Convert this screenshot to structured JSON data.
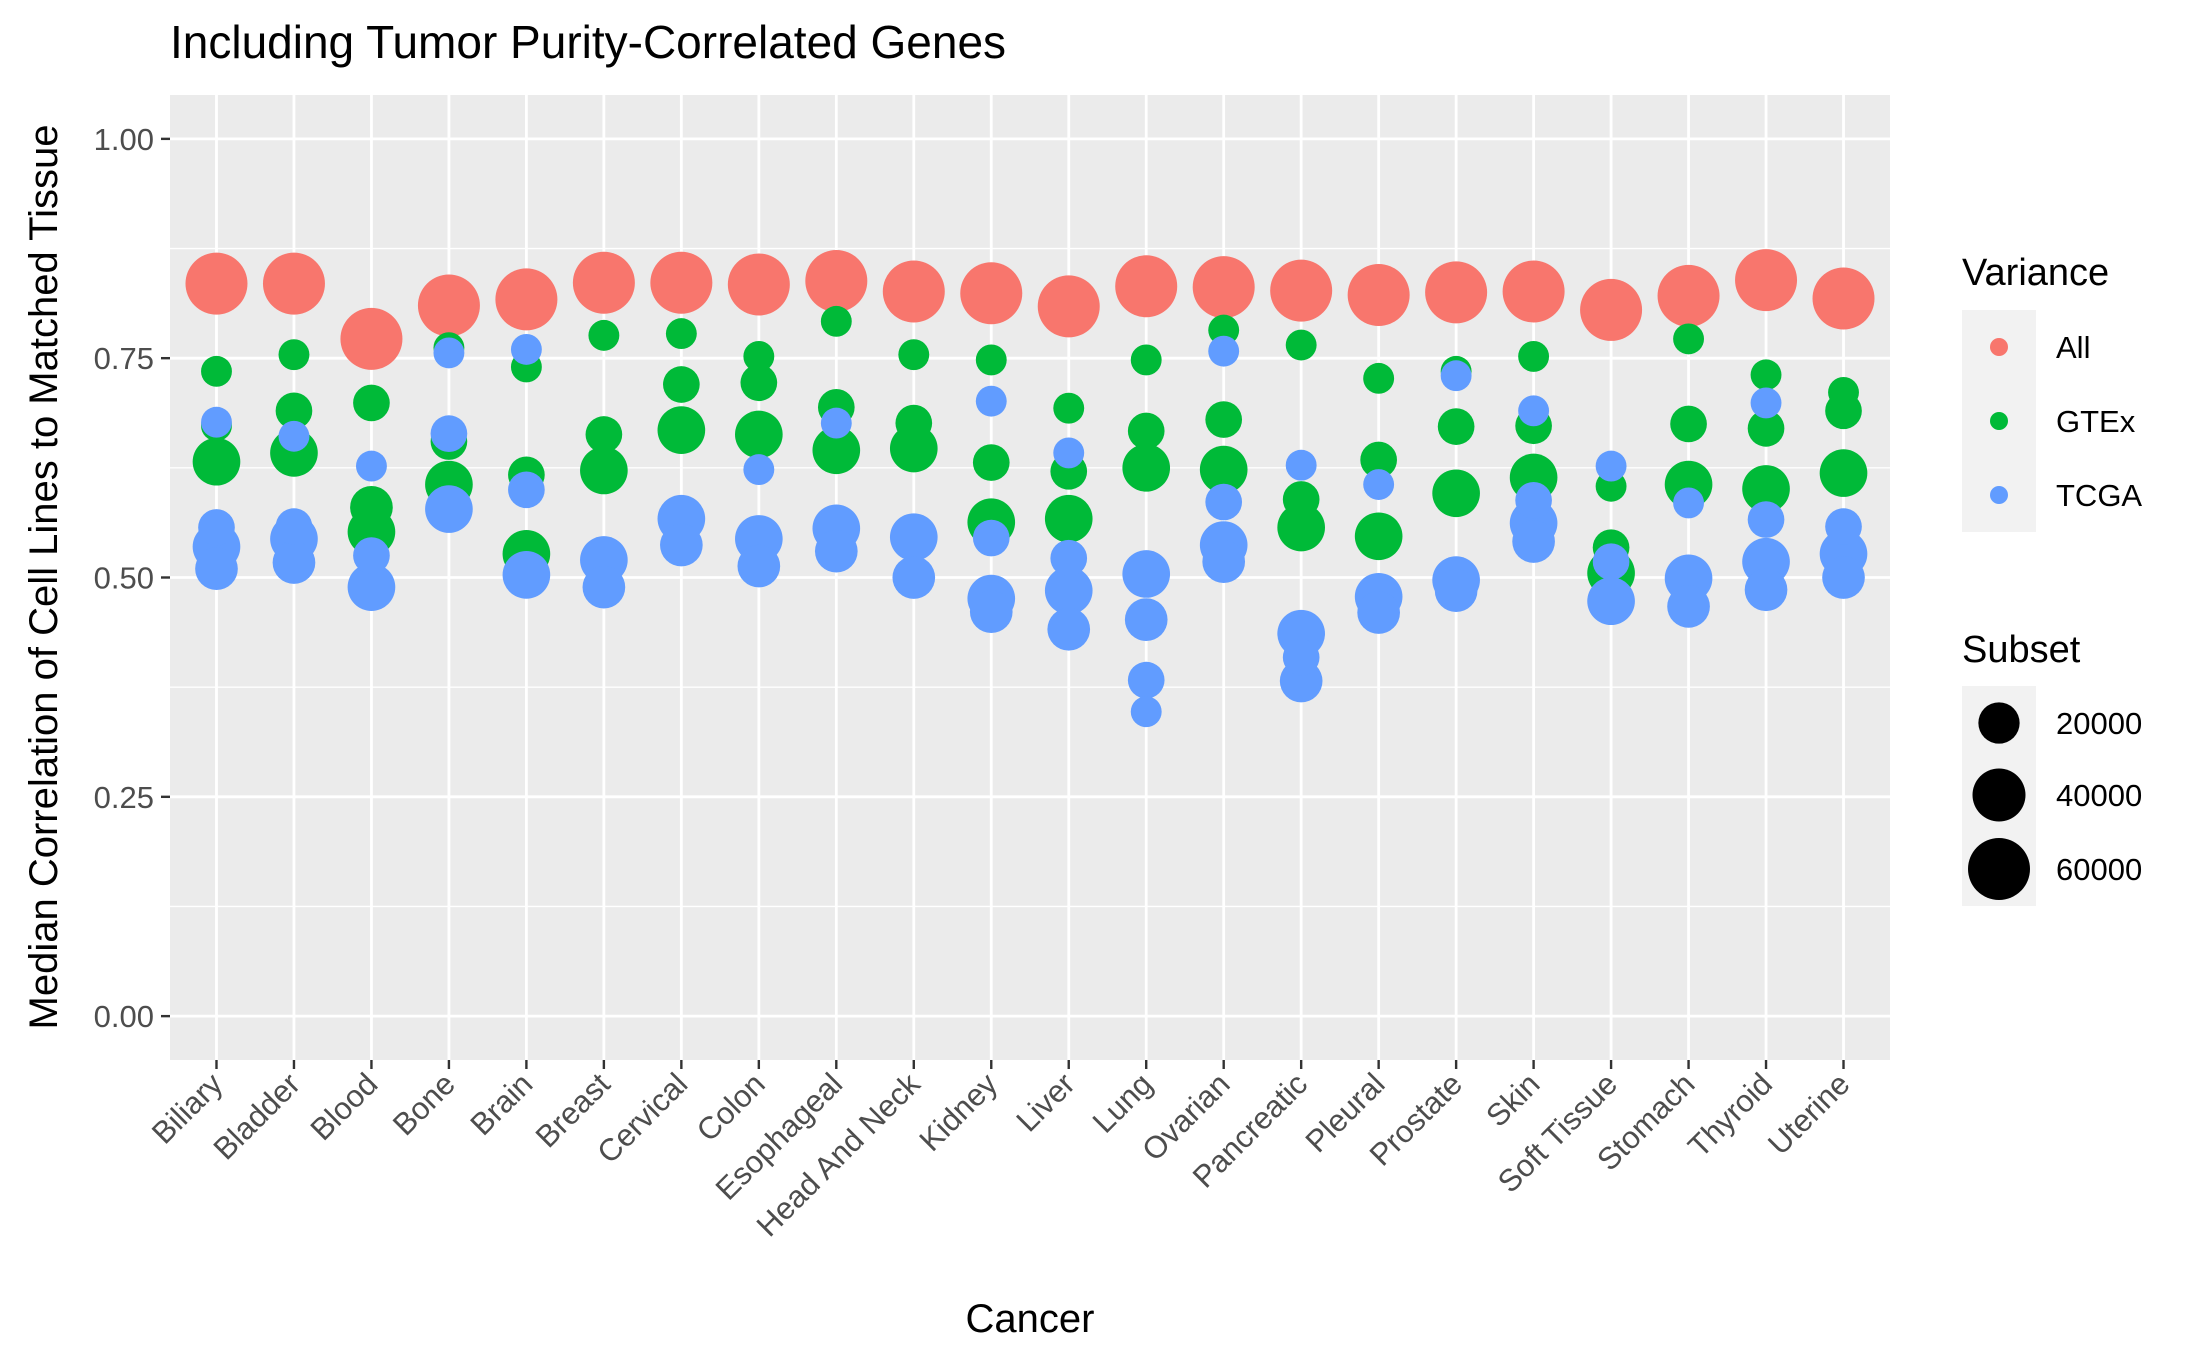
{
  "chart_data": {
    "type": "scatter",
    "title": "Including Tumor Purity-Correlated Genes",
    "xlabel": "Cancer",
    "ylabel": "Median Correlation of Cell Lines to Matched Tissue",
    "ylim": [
      -0.05,
      1.05
    ],
    "yticks": [
      0.0,
      0.25,
      0.5,
      0.75,
      1.0
    ],
    "ytick_labels": [
      "0.00",
      "0.25",
      "0.50",
      "0.75",
      "1.00"
    ],
    "grid": true,
    "legend_position": "right",
    "categories": [
      "Biliary",
      "Bladder",
      "Blood",
      "Bone",
      "Brain",
      "Breast",
      "Cervical",
      "Colon",
      "Esophageal",
      "Head And Neck",
      "Kidney",
      "Liver",
      "Lung",
      "Ovarian",
      "Pancreatic",
      "Pleural",
      "Prostate",
      "Skin",
      "Soft Tissue",
      "Stomach",
      "Thyroid",
      "Uterine"
    ],
    "color_legend": {
      "title": "Variance",
      "entries": [
        {
          "name": "All",
          "color": "#F8766D"
        },
        {
          "name": "GTEx",
          "color": "#00BA38"
        },
        {
          "name": "TCGA",
          "color": "#619CFF"
        }
      ]
    },
    "size_legend": {
      "title": "Subset",
      "entries": [
        {
          "label": "20000",
          "value": 20000
        },
        {
          "label": "40000",
          "value": 40000
        },
        {
          "label": "60000",
          "value": 60000
        }
      ]
    },
    "series": [
      {
        "name": "All",
        "color": "#F8766D",
        "points": [
          {
            "x": "Biliary",
            "y": 0.835,
            "size": 60000
          },
          {
            "x": "Bladder",
            "y": 0.835,
            "size": 60000
          },
          {
            "x": "Blood",
            "y": 0.772,
            "size": 60000
          },
          {
            "x": "Bone",
            "y": 0.81,
            "size": 60000
          },
          {
            "x": "Brain",
            "y": 0.817,
            "size": 60000
          },
          {
            "x": "Breast",
            "y": 0.836,
            "size": 60000
          },
          {
            "x": "Cervical",
            "y": 0.836,
            "size": 60000
          },
          {
            "x": "Colon",
            "y": 0.834,
            "size": 60000
          },
          {
            "x": "Esophageal",
            "y": 0.838,
            "size": 60000
          },
          {
            "x": "Head And Neck",
            "y": 0.826,
            "size": 60000
          },
          {
            "x": "Kidney",
            "y": 0.824,
            "size": 60000
          },
          {
            "x": "Liver",
            "y": 0.809,
            "size": 60000
          },
          {
            "x": "Lung",
            "y": 0.832,
            "size": 60000
          },
          {
            "x": "Ovarian",
            "y": 0.831,
            "size": 60000
          },
          {
            "x": "Pancreatic",
            "y": 0.827,
            "size": 60000
          },
          {
            "x": "Pleural",
            "y": 0.822,
            "size": 60000
          },
          {
            "x": "Prostate",
            "y": 0.825,
            "size": 60000
          },
          {
            "x": "Skin",
            "y": 0.826,
            "size": 60000
          },
          {
            "x": "Soft Tissue",
            "y": 0.805,
            "size": 60000
          },
          {
            "x": "Stomach",
            "y": 0.821,
            "size": 60000
          },
          {
            "x": "Thyroid",
            "y": 0.839,
            "size": 60000
          },
          {
            "x": "Uterine",
            "y": 0.818,
            "size": 60000
          }
        ]
      },
      {
        "name": "GTEx",
        "color": "#00BA38",
        "points": [
          {
            "x": "Biliary",
            "y": 0.735,
            "size": 8000
          },
          {
            "x": "Biliary",
            "y": 0.673,
            "size": 8000
          },
          {
            "x": "Biliary",
            "y": 0.632,
            "size": 30000
          },
          {
            "x": "Bladder",
            "y": 0.754,
            "size": 8000
          },
          {
            "x": "Bladder",
            "y": 0.69,
            "size": 14000
          },
          {
            "x": "Bladder",
            "y": 0.642,
            "size": 30000
          },
          {
            "x": "Blood",
            "y": 0.699,
            "size": 14000
          },
          {
            "x": "Blood",
            "y": 0.58,
            "size": 22000
          },
          {
            "x": "Blood",
            "y": 0.552,
            "size": 30000
          },
          {
            "x": "Bone",
            "y": 0.762,
            "size": 8000
          },
          {
            "x": "Bone",
            "y": 0.655,
            "size": 14000
          },
          {
            "x": "Bone",
            "y": 0.606,
            "size": 30000
          },
          {
            "x": "Brain",
            "y": 0.74,
            "size": 8000
          },
          {
            "x": "Brain",
            "y": 0.617,
            "size": 14000
          },
          {
            "x": "Brain",
            "y": 0.527,
            "size": 30000
          },
          {
            "x": "Breast",
            "y": 0.776,
            "size": 8000
          },
          {
            "x": "Breast",
            "y": 0.663,
            "size": 14000
          },
          {
            "x": "Breast",
            "y": 0.622,
            "size": 30000
          },
          {
            "x": "Cervical",
            "y": 0.778,
            "size": 8000
          },
          {
            "x": "Cervical",
            "y": 0.72,
            "size": 14000
          },
          {
            "x": "Cervical",
            "y": 0.668,
            "size": 30000
          },
          {
            "x": "Colon",
            "y": 0.752,
            "size": 8000
          },
          {
            "x": "Colon",
            "y": 0.722,
            "size": 14000
          },
          {
            "x": "Colon",
            "y": 0.663,
            "size": 30000
          },
          {
            "x": "Esophageal",
            "y": 0.792,
            "size": 8000
          },
          {
            "x": "Esophageal",
            "y": 0.694,
            "size": 14000
          },
          {
            "x": "Esophageal",
            "y": 0.645,
            "size": 30000
          },
          {
            "x": "Head And Neck",
            "y": 0.754,
            "size": 8000
          },
          {
            "x": "Head And Neck",
            "y": 0.676,
            "size": 14000
          },
          {
            "x": "Head And Neck",
            "y": 0.647,
            "size": 30000
          },
          {
            "x": "Kidney",
            "y": 0.748,
            "size": 8000
          },
          {
            "x": "Kidney",
            "y": 0.631,
            "size": 14000
          },
          {
            "x": "Kidney",
            "y": 0.563,
            "size": 30000
          },
          {
            "x": "Liver",
            "y": 0.693,
            "size": 8000
          },
          {
            "x": "Liver",
            "y": 0.621,
            "size": 14000
          },
          {
            "x": "Liver",
            "y": 0.567,
            "size": 30000
          },
          {
            "x": "Lung",
            "y": 0.748,
            "size": 8000
          },
          {
            "x": "Lung",
            "y": 0.667,
            "size": 14000
          },
          {
            "x": "Lung",
            "y": 0.625,
            "size": 30000
          },
          {
            "x": "Ovarian",
            "y": 0.782,
            "size": 8000
          },
          {
            "x": "Ovarian",
            "y": 0.68,
            "size": 14000
          },
          {
            "x": "Ovarian",
            "y": 0.623,
            "size": 30000
          },
          {
            "x": "Pancreatic",
            "y": 0.765,
            "size": 8000
          },
          {
            "x": "Pancreatic",
            "y": 0.589,
            "size": 14000
          },
          {
            "x": "Pancreatic",
            "y": 0.557,
            "size": 30000
          },
          {
            "x": "Pleural",
            "y": 0.727,
            "size": 8000
          },
          {
            "x": "Pleural",
            "y": 0.634,
            "size": 14000
          },
          {
            "x": "Pleural",
            "y": 0.547,
            "size": 30000
          },
          {
            "x": "Prostate",
            "y": 0.735,
            "size": 8000
          },
          {
            "x": "Prostate",
            "y": 0.672,
            "size": 14000
          },
          {
            "x": "Prostate",
            "y": 0.596,
            "size": 30000
          },
          {
            "x": "Skin",
            "y": 0.752,
            "size": 8000
          },
          {
            "x": "Skin",
            "y": 0.673,
            "size": 14000
          },
          {
            "x": "Skin",
            "y": 0.614,
            "size": 30000
          },
          {
            "x": "Soft Tissue",
            "y": 0.604,
            "size": 8000
          },
          {
            "x": "Soft Tissue",
            "y": 0.534,
            "size": 14000
          },
          {
            "x": "Soft Tissue",
            "y": 0.505,
            "size": 30000
          },
          {
            "x": "Stomach",
            "y": 0.772,
            "size": 8000
          },
          {
            "x": "Stomach",
            "y": 0.675,
            "size": 14000
          },
          {
            "x": "Stomach",
            "y": 0.606,
            "size": 30000
          },
          {
            "x": "Thyroid",
            "y": 0.731,
            "size": 8000
          },
          {
            "x": "Thyroid",
            "y": 0.67,
            "size": 14000
          },
          {
            "x": "Thyroid",
            "y": 0.601,
            "size": 30000
          },
          {
            "x": "Uterine",
            "y": 0.711,
            "size": 8000
          },
          {
            "x": "Uterine",
            "y": 0.69,
            "size": 14000
          },
          {
            "x": "Uterine",
            "y": 0.619,
            "size": 30000
          }
        ]
      },
      {
        "name": "TCGA",
        "color": "#619CFF",
        "points": [
          {
            "x": "Biliary",
            "y": 0.677,
            "size": 8000
          },
          {
            "x": "Biliary",
            "y": 0.557,
            "size": 14000
          },
          {
            "x": "Biliary",
            "y": 0.535,
            "size": 30000
          },
          {
            "x": "Biliary",
            "y": 0.51,
            "size": 22000
          },
          {
            "x": "Bladder",
            "y": 0.661,
            "size": 8000
          },
          {
            "x": "Bladder",
            "y": 0.558,
            "size": 14000
          },
          {
            "x": "Bladder",
            "y": 0.544,
            "size": 30000
          },
          {
            "x": "Bladder",
            "y": 0.517,
            "size": 22000
          },
          {
            "x": "Blood",
            "y": 0.627,
            "size": 8000
          },
          {
            "x": "Blood",
            "y": 0.525,
            "size": 14000
          },
          {
            "x": "Blood",
            "y": 0.489,
            "size": 30000
          },
          {
            "x": "Bone",
            "y": 0.756,
            "size": 8000
          },
          {
            "x": "Bone",
            "y": 0.664,
            "size": 14000
          },
          {
            "x": "Bone",
            "y": 0.578,
            "size": 30000
          },
          {
            "x": "Brain",
            "y": 0.76,
            "size": 8000
          },
          {
            "x": "Brain",
            "y": 0.6,
            "size": 14000
          },
          {
            "x": "Brain",
            "y": 0.503,
            "size": 30000
          },
          {
            "x": "Breast",
            "y": 0.52,
            "size": 30000
          },
          {
            "x": "Breast",
            "y": 0.489,
            "size": 22000
          },
          {
            "x": "Cervical",
            "y": 0.567,
            "size": 30000
          },
          {
            "x": "Cervical",
            "y": 0.537,
            "size": 22000
          },
          {
            "x": "Colon",
            "y": 0.623,
            "size": 8000
          },
          {
            "x": "Colon",
            "y": 0.544,
            "size": 30000
          },
          {
            "x": "Colon",
            "y": 0.513,
            "size": 22000
          },
          {
            "x": "Esophageal",
            "y": 0.676,
            "size": 8000
          },
          {
            "x": "Esophageal",
            "y": 0.556,
            "size": 30000
          },
          {
            "x": "Esophageal",
            "y": 0.53,
            "size": 22000
          },
          {
            "x": "Head And Neck",
            "y": 0.546,
            "size": 30000
          },
          {
            "x": "Head And Neck",
            "y": 0.5,
            "size": 22000
          },
          {
            "x": "Kidney",
            "y": 0.701,
            "size": 8000
          },
          {
            "x": "Kidney",
            "y": 0.545,
            "size": 14000
          },
          {
            "x": "Kidney",
            "y": 0.476,
            "size": 30000
          },
          {
            "x": "Kidney",
            "y": 0.461,
            "size": 22000
          },
          {
            "x": "Liver",
            "y": 0.642,
            "size": 8000
          },
          {
            "x": "Liver",
            "y": 0.522,
            "size": 14000
          },
          {
            "x": "Liver",
            "y": 0.485,
            "size": 30000
          },
          {
            "x": "Liver",
            "y": 0.441,
            "size": 22000
          },
          {
            "x": "Lung",
            "y": 0.504,
            "size": 30000
          },
          {
            "x": "Lung",
            "y": 0.452,
            "size": 22000
          },
          {
            "x": "Lung",
            "y": 0.383,
            "size": 14000
          },
          {
            "x": "Lung",
            "y": 0.347,
            "size": 8000
          },
          {
            "x": "Ovarian",
            "y": 0.758,
            "size": 8000
          },
          {
            "x": "Ovarian",
            "y": 0.586,
            "size": 14000
          },
          {
            "x": "Ovarian",
            "y": 0.537,
            "size": 30000
          },
          {
            "x": "Ovarian",
            "y": 0.518,
            "size": 22000
          },
          {
            "x": "Pancreatic",
            "y": 0.628,
            "size": 8000
          },
          {
            "x": "Pancreatic",
            "y": 0.436,
            "size": 30000
          },
          {
            "x": "Pancreatic",
            "y": 0.409,
            "size": 14000
          },
          {
            "x": "Pancreatic",
            "y": 0.382,
            "size": 22000
          },
          {
            "x": "Pleural",
            "y": 0.606,
            "size": 8000
          },
          {
            "x": "Pleural",
            "y": 0.478,
            "size": 30000
          },
          {
            "x": "Pleural",
            "y": 0.46,
            "size": 22000
          },
          {
            "x": "Prostate",
            "y": 0.73,
            "size": 8000
          },
          {
            "x": "Prostate",
            "y": 0.497,
            "size": 30000
          },
          {
            "x": "Prostate",
            "y": 0.485,
            "size": 22000
          },
          {
            "x": "Skin",
            "y": 0.69,
            "size": 8000
          },
          {
            "x": "Skin",
            "y": 0.588,
            "size": 14000
          },
          {
            "x": "Skin",
            "y": 0.562,
            "size": 30000
          },
          {
            "x": "Skin",
            "y": 0.541,
            "size": 22000
          },
          {
            "x": "Soft Tissue",
            "y": 0.627,
            "size": 8000
          },
          {
            "x": "Soft Tissue",
            "y": 0.518,
            "size": 14000
          },
          {
            "x": "Soft Tissue",
            "y": 0.473,
            "size": 30000
          },
          {
            "x": "Stomach",
            "y": 0.585,
            "size": 8000
          },
          {
            "x": "Stomach",
            "y": 0.499,
            "size": 30000
          },
          {
            "x": "Stomach",
            "y": 0.467,
            "size": 22000
          },
          {
            "x": "Thyroid",
            "y": 0.699,
            "size": 8000
          },
          {
            "x": "Thyroid",
            "y": 0.566,
            "size": 14000
          },
          {
            "x": "Thyroid",
            "y": 0.518,
            "size": 30000
          },
          {
            "x": "Thyroid",
            "y": 0.486,
            "size": 22000
          },
          {
            "x": "Uterine",
            "y": 0.558,
            "size": 14000
          },
          {
            "x": "Uterine",
            "y": 0.527,
            "size": 30000
          },
          {
            "x": "Uterine",
            "y": 0.5,
            "size": 22000
          }
        ]
      }
    ]
  }
}
